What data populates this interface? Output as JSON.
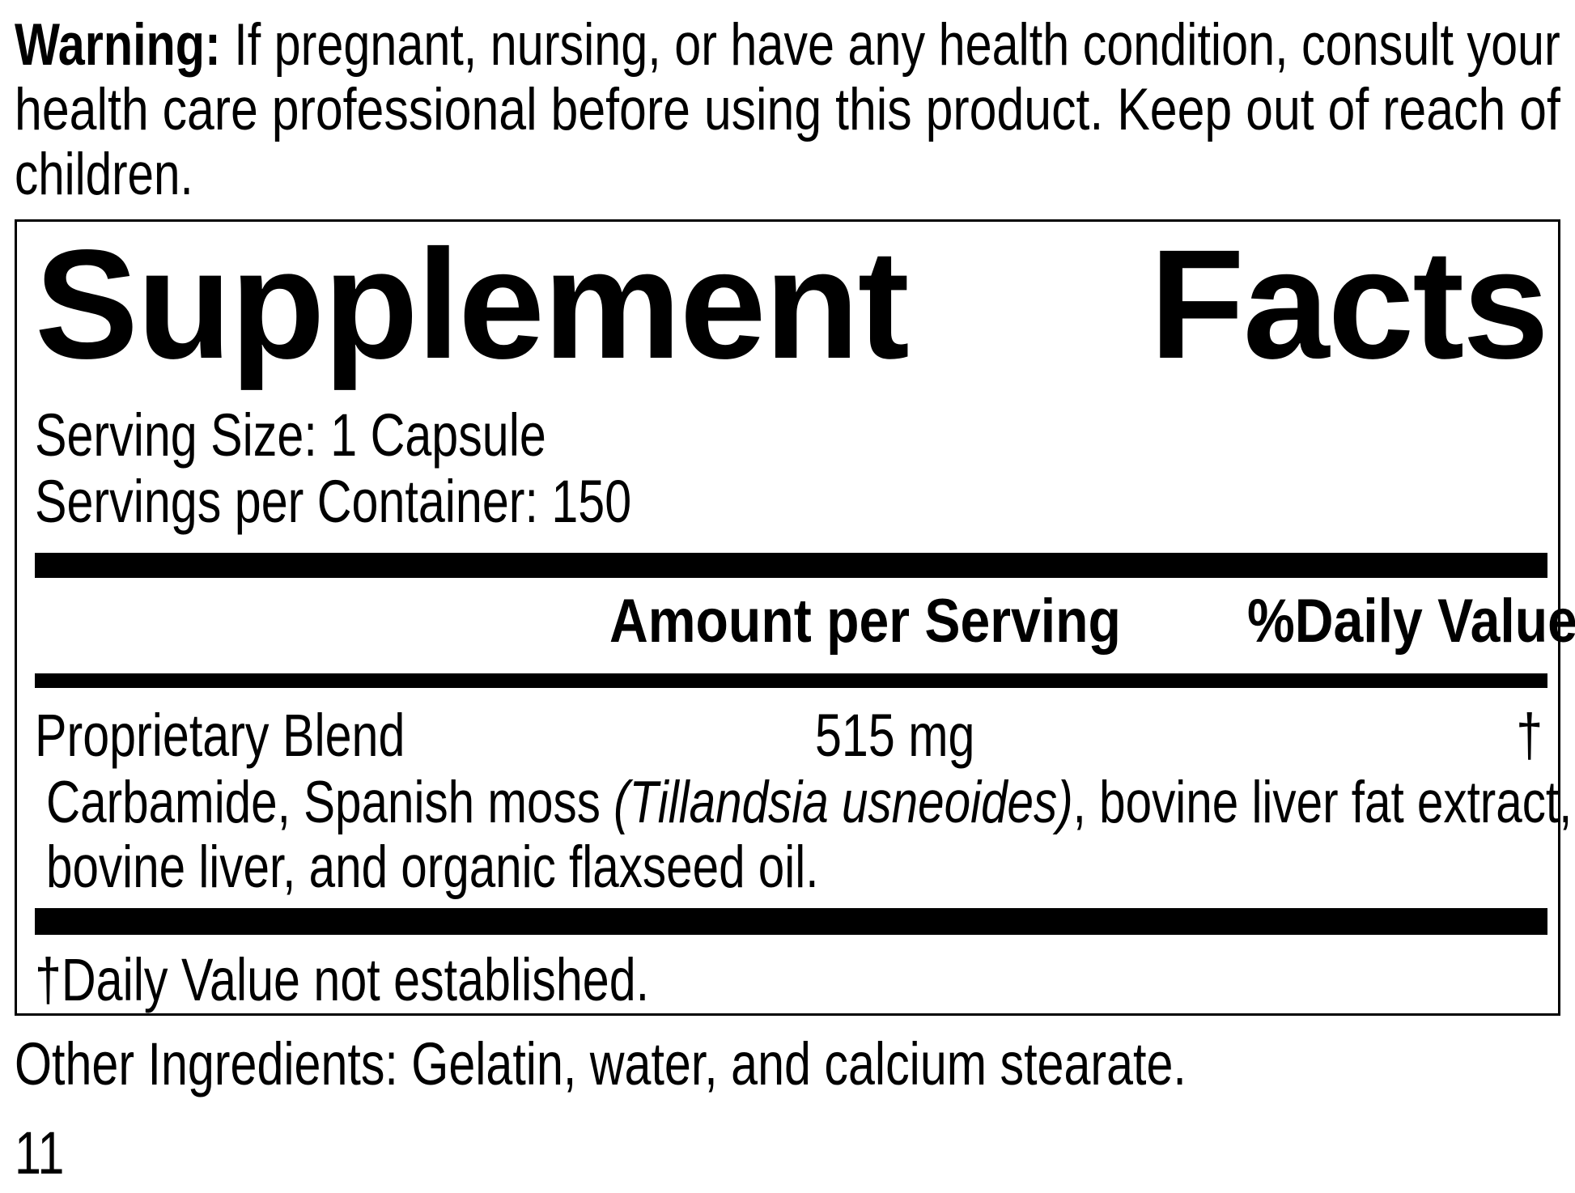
{
  "colors": {
    "ink": "#000000",
    "paper": "#ffffff"
  },
  "warning": {
    "lead": "Warning:",
    "line1_rest": " If pregnant, nursing, or have any health condition, consult your",
    "line2": "health care professional before using this product. Keep out of reach of",
    "line3": "children."
  },
  "supplement_facts": {
    "title": {
      "word1": "Supplement",
      "word2": "Facts"
    },
    "serving_size": "Serving Size: 1 Capsule",
    "servings_per_container": "Servings per Container: 150",
    "columns": {
      "amount": "Amount per Serving",
      "daily_value": "%Daily Value"
    },
    "rows": [
      {
        "name": "Proprietary Blend",
        "amount": "515 mg",
        "daily_value": "†"
      }
    ],
    "blend_description": {
      "line1_pre_italic": "Carbamide, Spanish moss ",
      "line1_italic": "(Tillandsia usneoides)",
      "line1_post_italic": ", bovine liver fat extract,",
      "line2": "bovine liver, and organic flaxseed oil."
    },
    "footnote": "†Daily Value not established."
  },
  "other_ingredients": "Other Ingredients: Gelatin, water, and calcium stearate.",
  "page_number": "11"
}
